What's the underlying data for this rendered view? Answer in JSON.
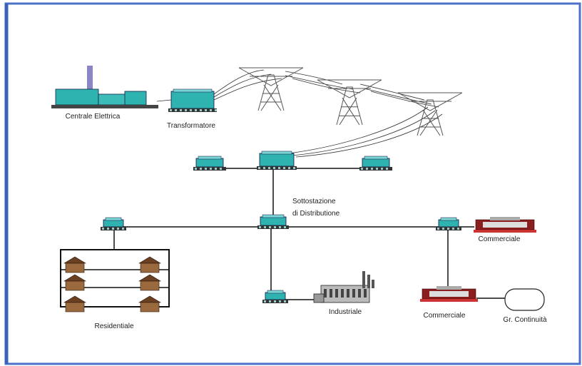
{
  "nodes": [
    {
      "label": "Centrale Elettrica"
    },
    {
      "label": "Transformatore"
    },
    {
      "label_lines": [
        "Sottostazione",
        "di Distributione"
      ]
    },
    {
      "label": "Commerciale"
    },
    {
      "label": "Residentiale"
    },
    {
      "label": "Industriale"
    },
    {
      "label": "Commerciale"
    },
    {
      "label": "Gr. Continuità"
    }
  ]
}
